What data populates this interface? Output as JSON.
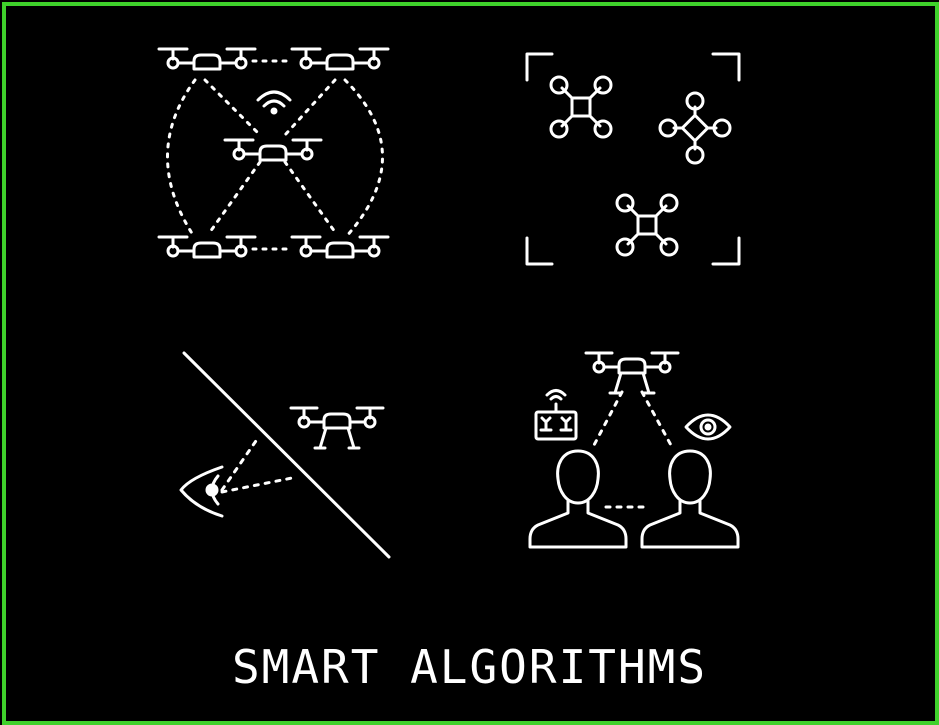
{
  "caption": "SMART ALGORITHMS",
  "colors": {
    "border": "#3fd12b",
    "background": "#000000",
    "stroke": "#ffffff"
  },
  "icons": [
    "drone-swarm-network-icon",
    "drone-detection-frame-icon",
    "drone-line-of-sight-icon",
    "drone-operator-observer-icon"
  ]
}
